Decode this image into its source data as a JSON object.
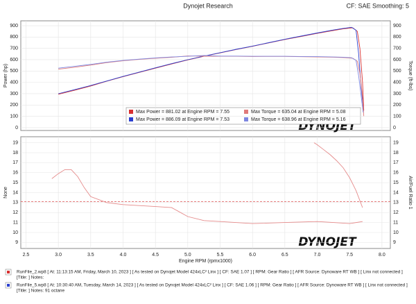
{
  "header": {
    "title": "Dynojet Research",
    "settings": "CF: SAE Smoothing: 5"
  },
  "logo": "DYNOJET",
  "chart_data": [
    {
      "type": "line",
      "ylabel": "Power (hp)",
      "y2label": "Torque (ft-lbs)",
      "xlim": [
        2.42,
        8.13
      ],
      "ylim": [
        -25,
        943
      ],
      "y2lim": [
        -25,
        943
      ],
      "yticks": [
        0,
        100,
        200,
        300,
        400,
        500,
        600,
        700,
        800,
        900
      ],
      "y2ticks": [
        0,
        100,
        200,
        300,
        400,
        500,
        600,
        700,
        800,
        900
      ],
      "grid": true,
      "series": [
        {
          "name": "Max Power = 881.02 at Engine RPM = 7.55",
          "color": "#d83030",
          "x": [
            3.0,
            3.25,
            3.5,
            3.75,
            4.0,
            4.25,
            4.5,
            4.75,
            5.0,
            5.25,
            5.5,
            5.75,
            6.0,
            6.25,
            6.5,
            6.75,
            7.0,
            7.25,
            7.4,
            7.55,
            7.62,
            7.66,
            7.7,
            7.72
          ],
          "values": [
            295,
            330,
            368,
            410,
            450,
            488,
            525,
            562,
            598,
            630,
            660,
            690,
            718,
            748,
            778,
            805,
            832,
            858,
            872,
            881,
            850,
            700,
            400,
            150
          ]
        },
        {
          "name": "Max Power = 886.09 at Engine RPM = 7.53",
          "color": "#2a3fcf",
          "x": [
            3.0,
            3.25,
            3.5,
            3.75,
            4.0,
            4.25,
            4.5,
            4.75,
            5.0,
            5.25,
            5.5,
            5.75,
            6.0,
            6.25,
            6.5,
            6.75,
            7.0,
            7.25,
            7.4,
            7.53,
            7.6,
            7.64,
            7.68,
            7.71
          ],
          "values": [
            300,
            335,
            372,
            412,
            452,
            490,
            528,
            565,
            600,
            632,
            662,
            692,
            720,
            750,
            780,
            808,
            836,
            862,
            876,
            886,
            860,
            650,
            350,
            180
          ]
        },
        {
          "name": "Max Torque = 635.04 at Engine RPM = 5.08",
          "color": "#e07a7a",
          "axis": "y2",
          "x": [
            3.0,
            3.25,
            3.5,
            3.75,
            4.0,
            4.25,
            4.5,
            4.75,
            5.0,
            5.25,
            5.5,
            5.75,
            6.0,
            6.25,
            6.5,
            6.75,
            7.0,
            7.25,
            7.4,
            7.55,
            7.62,
            7.66,
            7.7,
            7.72
          ],
          "values": [
            516,
            533,
            552,
            574,
            591,
            603,
            613,
            621,
            633,
            630,
            630,
            630,
            628,
            629,
            629,
            626,
            624,
            622,
            619,
            613,
            586,
            480,
            273,
            102
          ]
        },
        {
          "name": "Max Torque = 638.96 at Engine RPM = 5.16",
          "color": "#7d86e0",
          "axis": "y2",
          "x": [
            3.0,
            3.25,
            3.5,
            3.75,
            4.0,
            4.25,
            4.5,
            4.75,
            5.0,
            5.25,
            5.5,
            5.75,
            6.0,
            6.25,
            6.5,
            6.75,
            7.0,
            7.25,
            7.4,
            7.53,
            7.6,
            7.64,
            7.68,
            7.71
          ],
          "values": [
            525,
            541,
            558,
            578,
            593,
            605,
            616,
            624,
            630,
            637,
            632,
            632,
            630,
            630,
            630,
            628,
            627,
            624,
            622,
            617,
            594,
            457,
            273,
            134
          ]
        }
      ]
    },
    {
      "type": "line",
      "ylabel": "None",
      "y2label": "Air/Fuel Ratio 1",
      "xlabel": "Engine RPM (rpmx1000)",
      "xlim": [
        2.42,
        8.13
      ],
      "ylim": [
        8.4,
        19.6
      ],
      "y2lim": [
        8.4,
        19.6
      ],
      "xticks": [
        2.5,
        {
          "value": 3,
          "label": "3.0"
        },
        3.5,
        {
          "value": 4,
          "label": "4.0"
        },
        4.5,
        {
          "value": 5,
          "label": "5.0"
        },
        5.5,
        {
          "value": 6,
          "label": "6.0"
        },
        6.5,
        {
          "value": 7,
          "label": "7.0"
        },
        7.5,
        {
          "value": 8,
          "label": "8.0"
        }
      ],
      "yticks": [
        9,
        10,
        11,
        12,
        13,
        14,
        15,
        16,
        17,
        18,
        19
      ],
      "y2ticks": [
        9,
        10,
        11,
        12,
        13,
        14,
        15,
        16,
        17,
        18,
        19
      ],
      "grid": true,
      "reference_lines": [
        13.1
      ],
      "reference_color": "#d83030",
      "series": [
        {
          "color": "#e58a8a",
          "axis": "y2",
          "x": [
            2.9,
            3.0,
            3.1,
            3.2,
            3.3,
            3.4,
            3.5,
            3.75,
            4.0,
            4.25,
            4.5,
            4.75,
            5.0,
            5.25,
            5.5,
            6.0,
            6.5,
            7.0,
            7.25,
            7.5,
            7.7
          ],
          "values": [
            15.4,
            15.9,
            16.3,
            16.3,
            15.6,
            14.5,
            13.6,
            13.0,
            12.8,
            12.7,
            12.6,
            12.5,
            11.6,
            11.2,
            11.1,
            10.9,
            11.0,
            11.1,
            11.0,
            10.9,
            11.1
          ]
        },
        {
          "color": "#e58a8a",
          "axis": "y2",
          "x": [
            6.95,
            7.0,
            7.1,
            7.2,
            7.3,
            7.4,
            7.5,
            7.6,
            7.7
          ],
          "values": [
            19.0,
            18.8,
            18.3,
            17.8,
            17.2,
            16.5,
            15.5,
            14.2,
            12.5
          ]
        }
      ]
    }
  ],
  "footer": [
    {
      "color": "#d83030",
      "line1": "RunFile_2.wp8 [ At: 11:13:15 AM, Friday, March 10, 2023 ] [ As tested on Dynojet Model 424xLC² Linx ] [ CF: SAE 1.07 ] [ RPM: Gear Ratio ] [ AFR Source: Dynoware RT WB ] [ Linx not connected ]",
      "line2": "[Title: ]  Notes:"
    },
    {
      "color": "#2a3fcf",
      "line1": "RunFile_5.wp8 [ At: 10:30:40 AM, Tuesday, March 14, 2023 ] [ As tested on Dynojet Model 424xLC² Linx ] [ CF: SAE 1.06 ] [ RPM: Gear Ratio ] [ AFR Source: Dynoware RT WB ] [ Linx not connected ]",
      "line2": "[Title: ]  Notes: 91 octane"
    }
  ]
}
